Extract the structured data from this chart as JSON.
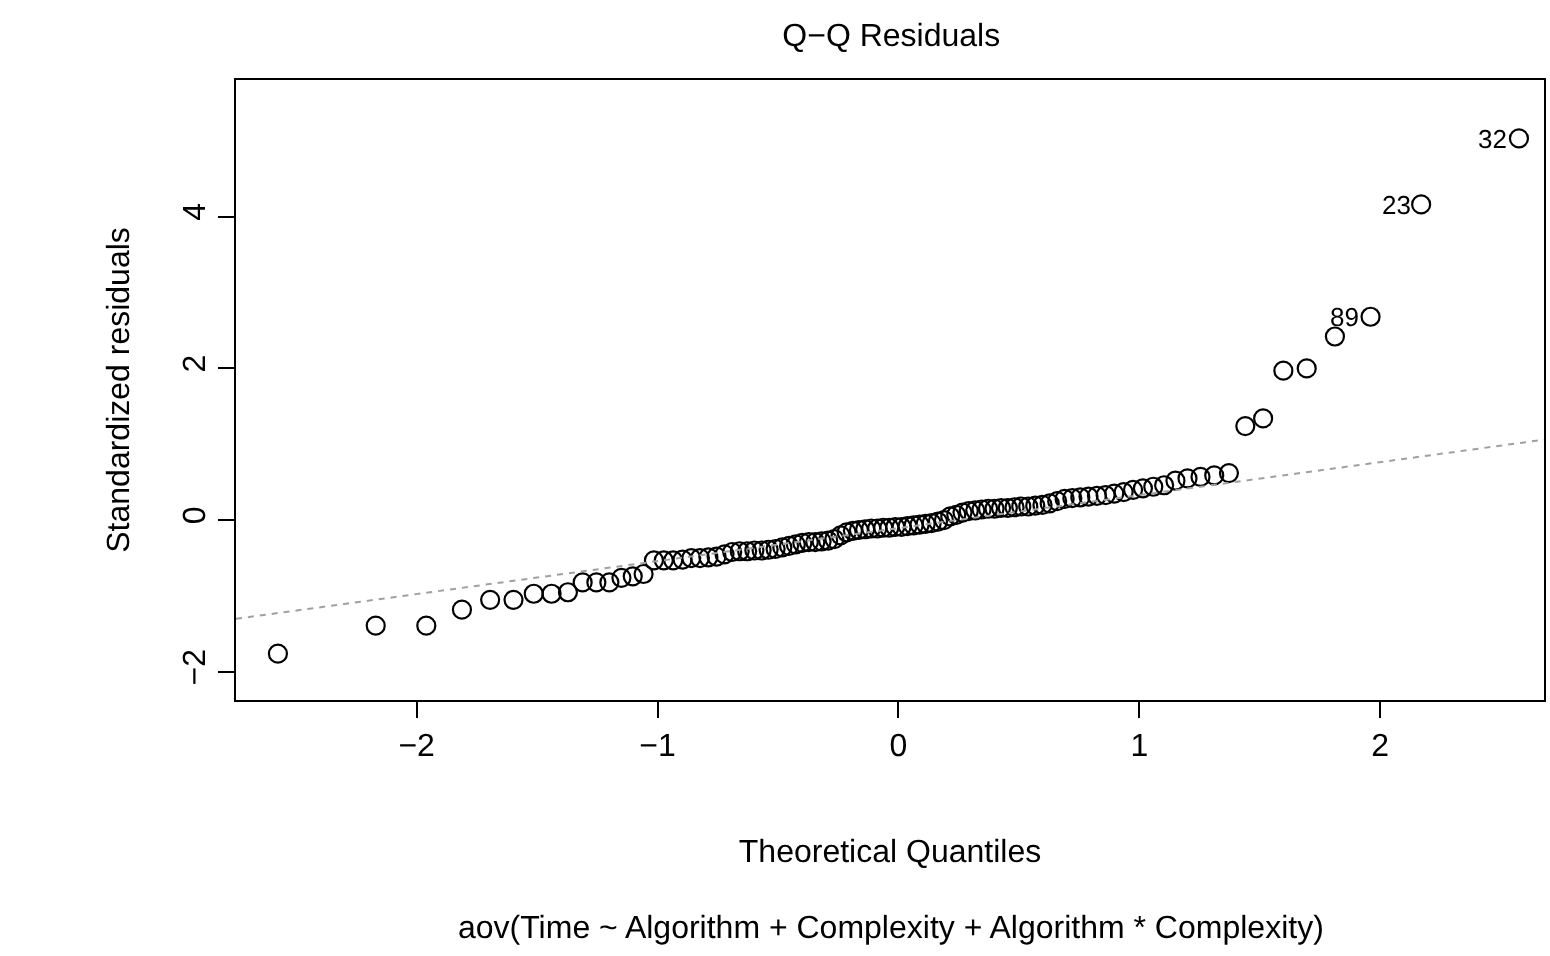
{
  "chart_data": {
    "type": "scatter",
    "title": "Q−Q Residuals",
    "xlabel": "Theoretical Quantiles",
    "ylabel": "Standardized residuals",
    "annotations": [
      "aov(Time ~ Algorithm + Complexity + Algorithm * Complexity)",
      {
        "text": "32",
        "x": 2.576,
        "y": 5.03
      },
      {
        "text": "23",
        "x": 2.17,
        "y": 4.16
      },
      {
        "text": "89",
        "x": 1.96,
        "y": 2.68
      }
    ],
    "series": [
      {
        "color": "#000000",
        "marker": "circle",
        "x": [
          -2.576,
          -2.17,
          -1.96,
          -1.812,
          -1.695,
          -1.598,
          -1.514,
          -1.44,
          -1.372,
          -1.311,
          -1.254,
          -1.2,
          -1.15,
          -1.103,
          -1.058,
          -1.015,
          -0.974,
          -0.935,
          -0.896,
          -0.86,
          -0.824,
          -0.789,
          -0.755,
          -0.722,
          -0.69,
          -0.659,
          -0.628,
          -0.598,
          -0.568,
          -0.539,
          -0.51,
          -0.482,
          -0.454,
          -0.426,
          -0.399,
          -0.372,
          -0.345,
          -0.319,
          -0.292,
          -0.266,
          -0.24,
          -0.215,
          -0.189,
          -0.164,
          -0.138,
          -0.113,
          -0.088,
          -0.063,
          -0.038,
          -0.013,
          0.013,
          0.038,
          0.063,
          0.088,
          0.113,
          0.138,
          0.164,
          0.189,
          0.215,
          0.24,
          0.266,
          0.292,
          0.319,
          0.345,
          0.372,
          0.399,
          0.426,
          0.454,
          0.482,
          0.51,
          0.539,
          0.568,
          0.598,
          0.628,
          0.659,
          0.69,
          0.722,
          0.755,
          0.789,
          0.824,
          0.86,
          0.896,
          0.935,
          0.974,
          1.015,
          1.058,
          1.103,
          1.15,
          1.2,
          1.254,
          1.311,
          1.372,
          1.44,
          1.514,
          1.598,
          1.695,
          1.812,
          1.96,
          2.17,
          2.576
        ],
        "values": [
          -1.76,
          -1.39,
          -1.39,
          -1.18,
          -1.05,
          -1.05,
          -0.97,
          -0.97,
          -0.95,
          -0.82,
          -0.82,
          -0.82,
          -0.76,
          -0.74,
          -0.71,
          -0.53,
          -0.53,
          -0.53,
          -0.52,
          -0.5,
          -0.5,
          -0.49,
          -0.48,
          -0.45,
          -0.42,
          -0.41,
          -0.41,
          -0.4,
          -0.4,
          -0.39,
          -0.38,
          -0.36,
          -0.34,
          -0.32,
          -0.3,
          -0.29,
          -0.29,
          -0.28,
          -0.27,
          -0.25,
          -0.2,
          -0.16,
          -0.14,
          -0.13,
          -0.12,
          -0.11,
          -0.11,
          -0.1,
          -0.1,
          -0.09,
          -0.09,
          -0.08,
          -0.07,
          -0.06,
          -0.05,
          -0.04,
          -0.02,
          0.0,
          0.05,
          0.07,
          0.1,
          0.12,
          0.13,
          0.14,
          0.15,
          0.15,
          0.16,
          0.16,
          0.17,
          0.18,
          0.18,
          0.19,
          0.2,
          0.22,
          0.25,
          0.28,
          0.29,
          0.3,
          0.31,
          0.32,
          0.33,
          0.35,
          0.37,
          0.4,
          0.42,
          0.44,
          0.46,
          0.52,
          0.55,
          0.57,
          0.59,
          0.62,
          1.24,
          1.34,
          1.97,
          2.0,
          2.42,
          2.68,
          4.16,
          5.03
        ]
      },
      {
        "type": "line",
        "color": "#a0a0a0",
        "line_style": "dotted",
        "x": [
          -2.75,
          2.68
        ],
        "values": [
          -1.3,
          1.06
        ]
      }
    ],
    "xlim": [
      -2.75,
      2.68
    ],
    "xticks": [
      -2,
      -1,
      0,
      1,
      2
    ],
    "ylim": [
      -2.37,
      5.8
    ],
    "yticks": [
      -2,
      0,
      2,
      4
    ]
  }
}
